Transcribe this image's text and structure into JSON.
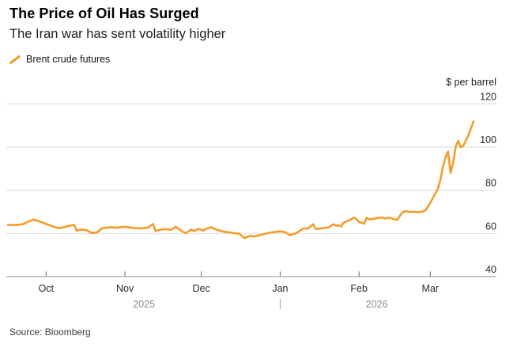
{
  "header": {
    "title": "The Price of Oil Has Surged",
    "subtitle": "The Iran war has sent volatility higher"
  },
  "legend": {
    "series_label": "Brent crude futures"
  },
  "axis": {
    "unit_label": "$ per barrel",
    "y_ticks": [
      120,
      100,
      80,
      60,
      40
    ],
    "x_ticks": [
      {
        "label": "Oct",
        "date": "2025-10-01"
      },
      {
        "label": "Nov",
        "date": "2025-11-01"
      },
      {
        "label": "Dec",
        "date": "2025-12-01"
      },
      {
        "label": "Jan",
        "date": "2026-01-01"
      },
      {
        "label": "Feb",
        "date": "2026-02-01"
      },
      {
        "label": "Mar",
        "date": "2026-03-01"
      }
    ],
    "years": [
      {
        "label": "2025"
      },
      {
        "label": "2026"
      }
    ],
    "year_divider_date": "2026-01-01"
  },
  "source": "Source: Bloomberg",
  "colors": {
    "line": "#F59B28",
    "gridline": "#dadada",
    "axis": "#ababab",
    "year_label": "#8c8c8c"
  },
  "chart_data": {
    "type": "line",
    "title": "The Price of Oil Has Surged",
    "subtitle": "The Iran war has sent volatility higher",
    "ylabel": "$ per barrel",
    "ylim": [
      40,
      120
    ],
    "grid": "horizontal",
    "legend_position": "top-left",
    "x_tick_labels": [
      "Oct",
      "Nov",
      "Dec",
      "Jan",
      "Feb",
      "Mar"
    ],
    "series": [
      {
        "name": "Brent crude futures",
        "points": [
          [
            "2025-09-16",
            63.9
          ],
          [
            "2025-09-18",
            64.0
          ],
          [
            "2025-09-20",
            64.0
          ],
          [
            "2025-09-22",
            64.3
          ],
          [
            "2025-09-24",
            65.4
          ],
          [
            "2025-09-26",
            66.4
          ],
          [
            "2025-09-28",
            65.7
          ],
          [
            "2025-09-30",
            64.9
          ],
          [
            "2025-10-02",
            64.0
          ],
          [
            "2025-10-04",
            63.1
          ],
          [
            "2025-10-06",
            62.4
          ],
          [
            "2025-10-08",
            62.9
          ],
          [
            "2025-10-10",
            63.5
          ],
          [
            "2025-10-12",
            64.0
          ],
          [
            "2025-10-13",
            61.3
          ],
          [
            "2025-10-15",
            61.8
          ],
          [
            "2025-10-17",
            61.5
          ],
          [
            "2025-10-19",
            60.2
          ],
          [
            "2025-10-21",
            60.5
          ],
          [
            "2025-10-23",
            62.4
          ],
          [
            "2025-10-26",
            62.8
          ],
          [
            "2025-10-29",
            62.7
          ],
          [
            "2025-11-01",
            63.1
          ],
          [
            "2025-11-04",
            62.6
          ],
          [
            "2025-11-07",
            62.3
          ],
          [
            "2025-11-10",
            62.7
          ],
          [
            "2025-11-12",
            64.4
          ],
          [
            "2025-11-13",
            61.2
          ],
          [
            "2025-11-15",
            61.8
          ],
          [
            "2025-11-17",
            62.0
          ],
          [
            "2025-11-19",
            61.6
          ],
          [
            "2025-11-21",
            63.1
          ],
          [
            "2025-11-22",
            62.2
          ],
          [
            "2025-11-24",
            60.6
          ],
          [
            "2025-11-25",
            60.2
          ],
          [
            "2025-11-26",
            61.0
          ],
          [
            "2025-11-27",
            61.8
          ],
          [
            "2025-11-28",
            61.1
          ],
          [
            "2025-11-30",
            62.1
          ],
          [
            "2025-12-02",
            61.4
          ],
          [
            "2025-12-03",
            62.2
          ],
          [
            "2025-12-05",
            62.9
          ],
          [
            "2025-12-06",
            62.2
          ],
          [
            "2025-12-08",
            61.4
          ],
          [
            "2025-12-10",
            60.8
          ],
          [
            "2025-12-12",
            60.5
          ],
          [
            "2025-12-14",
            60.1
          ],
          [
            "2025-12-16",
            59.8
          ],
          [
            "2025-12-18",
            57.8
          ],
          [
            "2025-12-20",
            58.9
          ],
          [
            "2025-12-22",
            58.6
          ],
          [
            "2025-12-24",
            59.2
          ],
          [
            "2025-12-26",
            59.8
          ],
          [
            "2025-12-28",
            60.4
          ],
          [
            "2025-12-30",
            60.7
          ],
          [
            "2026-01-01",
            61.0
          ],
          [
            "2026-01-03",
            60.6
          ],
          [
            "2026-01-05",
            59.2
          ],
          [
            "2026-01-07",
            60.0
          ],
          [
            "2026-01-09",
            61.4
          ],
          [
            "2026-01-10",
            62.3
          ],
          [
            "2026-01-12",
            62.3
          ],
          [
            "2026-01-14",
            64.3
          ],
          [
            "2026-01-15",
            62.0
          ],
          [
            "2026-01-17",
            62.3
          ],
          [
            "2026-01-19",
            62.6
          ],
          [
            "2026-01-20",
            62.8
          ],
          [
            "2026-01-22",
            64.3
          ],
          [
            "2026-01-23",
            63.5
          ],
          [
            "2026-01-24",
            63.8
          ],
          [
            "2026-01-25",
            63.2
          ],
          [
            "2026-01-26",
            65.1
          ],
          [
            "2026-01-28",
            66.0
          ],
          [
            "2026-01-30",
            67.3
          ],
          [
            "2026-01-31",
            66.7
          ],
          [
            "2026-02-01",
            65.3
          ],
          [
            "2026-02-03",
            64.5
          ],
          [
            "2026-02-04",
            67.3
          ],
          [
            "2026-02-05",
            66.5
          ],
          [
            "2026-02-07",
            66.8
          ],
          [
            "2026-02-08",
            67.1
          ],
          [
            "2026-02-10",
            67.4
          ],
          [
            "2026-02-11",
            66.9
          ],
          [
            "2026-02-13",
            67.3
          ],
          [
            "2026-02-15",
            66.5
          ],
          [
            "2026-02-16",
            66.3
          ],
          [
            "2026-02-18",
            69.7
          ],
          [
            "2026-02-19",
            70.3
          ],
          [
            "2026-02-21",
            70.0
          ],
          [
            "2026-02-23",
            70.0
          ],
          [
            "2026-02-25",
            69.8
          ],
          [
            "2026-02-27",
            70.6
          ],
          [
            "2026-02-28",
            72.2
          ],
          [
            "2026-03-01",
            74.2
          ],
          [
            "2026-03-02",
            76.4
          ],
          [
            "2026-03-03",
            78.6
          ],
          [
            "2026-03-04",
            80.6
          ],
          [
            "2026-03-05",
            85.0
          ],
          [
            "2026-03-06",
            91.0
          ],
          [
            "2026-03-07",
            95.3
          ],
          [
            "2026-03-08",
            97.9
          ],
          [
            "2026-03-09",
            88.0
          ],
          [
            "2026-03-10",
            93.0
          ],
          [
            "2026-03-11",
            100.2
          ],
          [
            "2026-03-12",
            102.8
          ],
          [
            "2026-03-13",
            99.9
          ],
          [
            "2026-03-14",
            100.6
          ],
          [
            "2026-03-16",
            105.5
          ],
          [
            "2026-03-18",
            111.9
          ]
        ]
      }
    ]
  }
}
